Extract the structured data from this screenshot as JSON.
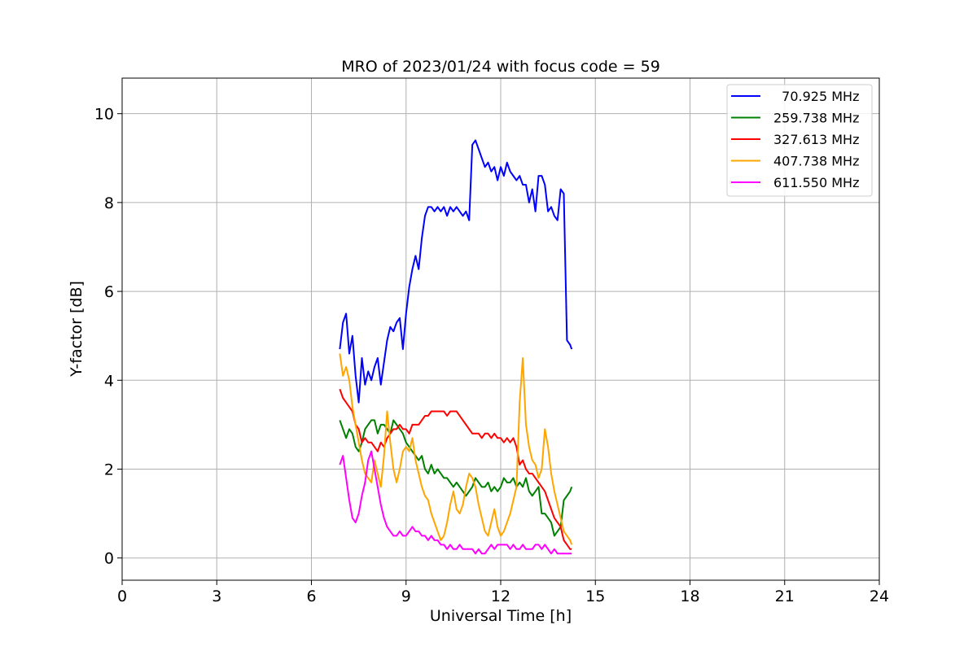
{
  "chart_data": {
    "type": "line",
    "title": "MRO of 2023/01/24 with focus code = 59",
    "xlabel": "Universal Time [h]",
    "ylabel": "Y-factor [dB]",
    "xlim": [
      0,
      24
    ],
    "ylim": [
      -0.5,
      10.8
    ],
    "xticks": [
      0,
      3,
      6,
      9,
      12,
      15,
      18,
      21,
      24
    ],
    "yticks": [
      0,
      2,
      4,
      6,
      8,
      10
    ],
    "grid": true,
    "legend_position": "top-right",
    "series": [
      {
        "name": "  70.925 MHz",
        "color": "#0000ff",
        "x": [
          6.9,
          7.0,
          7.1,
          7.2,
          7.3,
          7.4,
          7.5,
          7.6,
          7.7,
          7.8,
          7.9,
          8.0,
          8.1,
          8.2,
          8.3,
          8.4,
          8.5,
          8.6,
          8.7,
          8.8,
          8.9,
          9.0,
          9.1,
          9.2,
          9.3,
          9.4,
          9.5,
          9.6,
          9.7,
          9.8,
          9.9,
          10.0,
          10.1,
          10.2,
          10.3,
          10.4,
          10.5,
          10.6,
          10.7,
          10.8,
          10.9,
          11.0,
          11.1,
          11.2,
          11.3,
          11.4,
          11.5,
          11.6,
          11.7,
          11.8,
          11.9,
          12.0,
          12.1,
          12.2,
          12.3,
          12.4,
          12.5,
          12.6,
          12.7,
          12.8,
          12.9,
          13.0,
          13.1,
          13.2,
          13.3,
          13.4,
          13.5,
          13.6,
          13.7,
          13.8,
          13.9,
          14.0,
          14.1,
          14.2,
          14.25
        ],
        "y": [
          4.7,
          5.3,
          5.5,
          4.6,
          5.0,
          4.1,
          3.5,
          4.5,
          3.9,
          4.2,
          4.0,
          4.3,
          4.5,
          3.9,
          4.4,
          4.9,
          5.2,
          5.1,
          5.3,
          5.4,
          4.7,
          5.5,
          6.1,
          6.5,
          6.8,
          6.5,
          7.2,
          7.7,
          7.9,
          7.9,
          7.8,
          7.9,
          7.8,
          7.9,
          7.7,
          7.9,
          7.8,
          7.9,
          7.8,
          7.7,
          7.8,
          7.6,
          9.3,
          9.4,
          9.2,
          9.0,
          8.8,
          8.9,
          8.7,
          8.8,
          8.5,
          8.8,
          8.6,
          8.9,
          8.7,
          8.6,
          8.5,
          8.6,
          8.4,
          8.4,
          8.0,
          8.3,
          7.8,
          8.6,
          8.6,
          8.4,
          7.8,
          7.9,
          7.7,
          7.6,
          8.3,
          8.2,
          4.9,
          4.8,
          4.7
        ]
      },
      {
        "name": "259.738 MHz",
        "color": "#008000",
        "x": [
          6.9,
          7.0,
          7.1,
          7.2,
          7.3,
          7.4,
          7.5,
          7.6,
          7.7,
          7.8,
          7.9,
          8.0,
          8.1,
          8.2,
          8.3,
          8.4,
          8.5,
          8.6,
          8.7,
          8.8,
          8.9,
          9.0,
          9.1,
          9.2,
          9.3,
          9.4,
          9.5,
          9.6,
          9.7,
          9.8,
          9.9,
          10.0,
          10.1,
          10.2,
          10.3,
          10.4,
          10.5,
          10.6,
          10.7,
          10.8,
          10.9,
          11.0,
          11.1,
          11.2,
          11.3,
          11.4,
          11.5,
          11.6,
          11.7,
          11.8,
          11.9,
          12.0,
          12.1,
          12.2,
          12.3,
          12.4,
          12.5,
          12.6,
          12.7,
          12.8,
          12.9,
          13.0,
          13.1,
          13.2,
          13.3,
          13.4,
          13.5,
          13.6,
          13.7,
          13.8,
          13.9,
          14.0,
          14.1,
          14.2,
          14.25
        ],
        "y": [
          3.1,
          2.9,
          2.7,
          2.9,
          2.8,
          2.5,
          2.4,
          2.6,
          2.9,
          3.0,
          3.1,
          3.1,
          2.8,
          3.0,
          3.0,
          2.9,
          2.8,
          3.1,
          3.0,
          2.9,
          2.8,
          2.6,
          2.5,
          2.4,
          2.3,
          2.2,
          2.3,
          2.0,
          1.9,
          2.1,
          1.9,
          2.0,
          1.9,
          1.8,
          1.8,
          1.7,
          1.6,
          1.7,
          1.6,
          1.5,
          1.4,
          1.5,
          1.6,
          1.8,
          1.7,
          1.6,
          1.6,
          1.7,
          1.5,
          1.6,
          1.5,
          1.6,
          1.8,
          1.7,
          1.7,
          1.8,
          1.6,
          1.7,
          1.6,
          1.8,
          1.5,
          1.4,
          1.5,
          1.6,
          1.0,
          1.0,
          0.9,
          0.8,
          0.5,
          0.6,
          0.7,
          1.3,
          1.4,
          1.5,
          1.6
        ]
      },
      {
        "name": "327.613 MHz",
        "color": "#ff0000",
        "x": [
          6.9,
          7.0,
          7.1,
          7.2,
          7.3,
          7.4,
          7.5,
          7.6,
          7.7,
          7.8,
          7.9,
          8.0,
          8.1,
          8.2,
          8.3,
          8.4,
          8.5,
          8.6,
          8.7,
          8.8,
          8.9,
          9.0,
          9.1,
          9.2,
          9.3,
          9.4,
          9.5,
          9.6,
          9.7,
          9.8,
          9.9,
          10.0,
          10.1,
          10.2,
          10.3,
          10.4,
          10.5,
          10.6,
          10.7,
          10.8,
          10.9,
          11.0,
          11.1,
          11.2,
          11.3,
          11.4,
          11.5,
          11.6,
          11.7,
          11.8,
          11.9,
          12.0,
          12.1,
          12.2,
          12.3,
          12.4,
          12.5,
          12.6,
          12.7,
          12.8,
          12.9,
          13.0,
          13.1,
          13.2,
          13.3,
          13.4,
          13.5,
          13.6,
          13.7,
          13.8,
          13.9,
          14.0,
          14.1,
          14.2,
          14.25
        ],
        "y": [
          3.8,
          3.6,
          3.5,
          3.4,
          3.3,
          3.0,
          2.9,
          2.6,
          2.7,
          2.6,
          2.6,
          2.5,
          2.4,
          2.6,
          2.5,
          2.7,
          2.8,
          2.9,
          2.9,
          3.0,
          2.9,
          2.9,
          2.8,
          3.0,
          3.0,
          3.0,
          3.1,
          3.2,
          3.2,
          3.3,
          3.3,
          3.3,
          3.3,
          3.3,
          3.2,
          3.3,
          3.3,
          3.3,
          3.2,
          3.1,
          3.0,
          2.9,
          2.8,
          2.8,
          2.8,
          2.7,
          2.8,
          2.8,
          2.7,
          2.8,
          2.7,
          2.7,
          2.6,
          2.7,
          2.6,
          2.7,
          2.5,
          2.1,
          2.2,
          2.0,
          1.9,
          1.9,
          1.8,
          1.7,
          1.6,
          1.5,
          1.3,
          1.1,
          0.9,
          0.8,
          0.7,
          0.4,
          0.3,
          0.2,
          0.2
        ]
      },
      {
        "name": "407.738 MHz",
        "color": "#ffa500",
        "x": [
          6.9,
          7.0,
          7.1,
          7.2,
          7.3,
          7.4,
          7.5,
          7.6,
          7.7,
          7.8,
          7.9,
          8.0,
          8.1,
          8.2,
          8.3,
          8.4,
          8.5,
          8.6,
          8.7,
          8.8,
          8.9,
          9.0,
          9.1,
          9.2,
          9.3,
          9.4,
          9.5,
          9.6,
          9.7,
          9.8,
          9.9,
          10.0,
          10.1,
          10.2,
          10.3,
          10.4,
          10.5,
          10.6,
          10.7,
          10.8,
          10.9,
          11.0,
          11.1,
          11.2,
          11.3,
          11.4,
          11.5,
          11.6,
          11.7,
          11.8,
          11.9,
          12.0,
          12.1,
          12.2,
          12.3,
          12.4,
          12.5,
          12.6,
          12.7,
          12.8,
          12.9,
          13.0,
          13.1,
          13.2,
          13.3,
          13.4,
          13.5,
          13.6,
          13.7,
          13.8,
          13.9,
          14.0,
          14.1,
          14.2,
          14.25
        ],
        "y": [
          4.6,
          4.1,
          4.3,
          4.0,
          3.4,
          3.0,
          2.6,
          2.2,
          1.9,
          1.8,
          1.7,
          2.2,
          1.9,
          1.6,
          2.3,
          3.3,
          2.6,
          2.0,
          1.7,
          2.0,
          2.4,
          2.5,
          2.4,
          2.7,
          2.2,
          1.9,
          1.6,
          1.4,
          1.3,
          1.0,
          0.8,
          0.6,
          0.4,
          0.5,
          0.8,
          1.2,
          1.5,
          1.1,
          1.0,
          1.2,
          1.6,
          1.9,
          1.8,
          1.6,
          1.2,
          0.9,
          0.6,
          0.5,
          0.8,
          1.1,
          0.7,
          0.5,
          0.6,
          0.8,
          1.0,
          1.3,
          1.6,
          3.5,
          4.5,
          3.0,
          2.5,
          2.2,
          2.1,
          1.8,
          2.0,
          2.9,
          2.5,
          1.9,
          1.5,
          1.2,
          0.9,
          0.6,
          0.5,
          0.4,
          0.3
        ]
      },
      {
        "name": "611.550 MHz",
        "color": "#ff00ff",
        "x": [
          6.9,
          7.0,
          7.1,
          7.2,
          7.3,
          7.4,
          7.5,
          7.6,
          7.7,
          7.8,
          7.9,
          8.0,
          8.1,
          8.2,
          8.3,
          8.4,
          8.5,
          8.6,
          8.7,
          8.8,
          8.9,
          9.0,
          9.1,
          9.2,
          9.3,
          9.4,
          9.5,
          9.6,
          9.7,
          9.8,
          9.9,
          10.0,
          10.1,
          10.2,
          10.3,
          10.4,
          10.5,
          10.6,
          10.7,
          10.8,
          10.9,
          11.0,
          11.1,
          11.2,
          11.3,
          11.4,
          11.5,
          11.6,
          11.7,
          11.8,
          11.9,
          12.0,
          12.1,
          12.2,
          12.3,
          12.4,
          12.5,
          12.6,
          12.7,
          12.8,
          12.9,
          13.0,
          13.1,
          13.2,
          13.3,
          13.4,
          13.5,
          13.6,
          13.7,
          13.8,
          13.9,
          14.0,
          14.1,
          14.2,
          14.25
        ],
        "y": [
          2.1,
          2.3,
          1.8,
          1.3,
          0.9,
          0.8,
          1.0,
          1.4,
          1.7,
          2.2,
          2.4,
          2.0,
          1.6,
          1.2,
          0.9,
          0.7,
          0.6,
          0.5,
          0.5,
          0.6,
          0.5,
          0.5,
          0.6,
          0.7,
          0.6,
          0.6,
          0.5,
          0.5,
          0.4,
          0.5,
          0.4,
          0.4,
          0.3,
          0.3,
          0.2,
          0.3,
          0.2,
          0.2,
          0.3,
          0.2,
          0.2,
          0.2,
          0.2,
          0.1,
          0.2,
          0.1,
          0.1,
          0.2,
          0.3,
          0.2,
          0.3,
          0.3,
          0.3,
          0.3,
          0.2,
          0.3,
          0.2,
          0.2,
          0.3,
          0.2,
          0.2,
          0.2,
          0.3,
          0.3,
          0.2,
          0.3,
          0.2,
          0.1,
          0.2,
          0.1,
          0.1,
          0.1,
          0.1,
          0.1,
          0.1
        ]
      }
    ]
  }
}
